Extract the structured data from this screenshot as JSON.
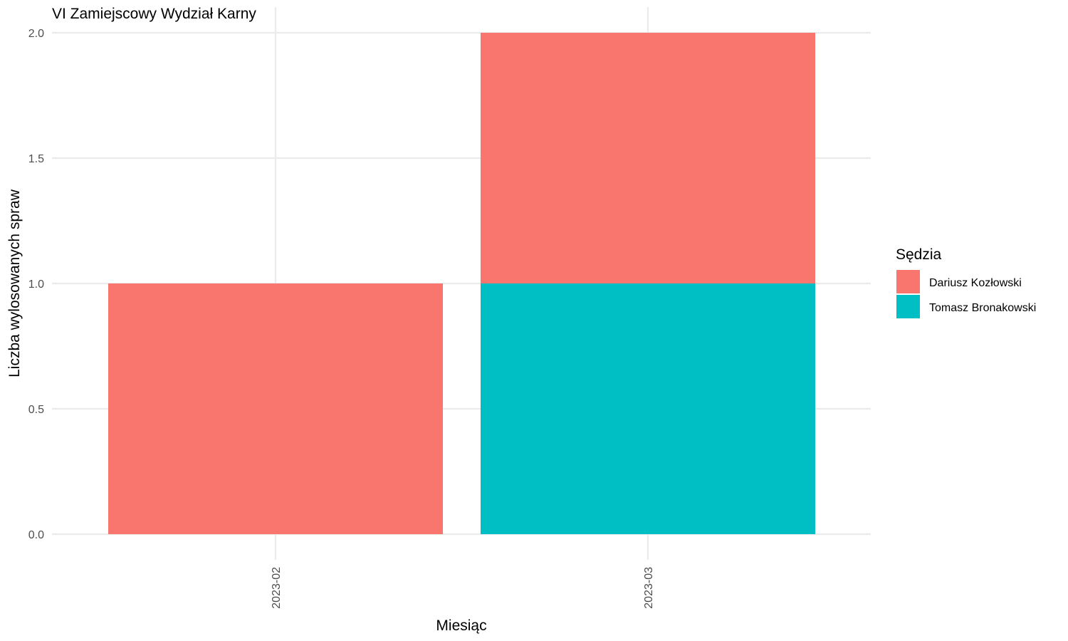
{
  "chart_data": {
    "type": "bar",
    "stacked": true,
    "title": "VI Zamiejscowy Wydział Karny",
    "xlabel": "Miesiąc",
    "ylabel": "Liczba wylosowanych spraw",
    "categories": [
      "2023-02",
      "2023-03"
    ],
    "series": [
      {
        "name": "Dariusz Kozłowski",
        "values": [
          1,
          1
        ],
        "color": "#F8766D"
      },
      {
        "name": "Tomasz Bronakowski",
        "values": [
          0,
          1
        ],
        "color": "#00BFC4"
      }
    ],
    "stack_order": [
      "Tomasz Bronakowski",
      "Dariusz Kozłowski"
    ],
    "ylim": [
      0,
      2
    ],
    "yticks": [
      "0.0",
      "0.5",
      "1.0",
      "1.5",
      "2.0"
    ],
    "x_tick_rotation": "vertical",
    "grid": true,
    "legend": {
      "title": "Sędzia",
      "position": "right",
      "entries": [
        "Dariusz Kozłowski",
        "Tomasz Bronakowski"
      ]
    }
  }
}
